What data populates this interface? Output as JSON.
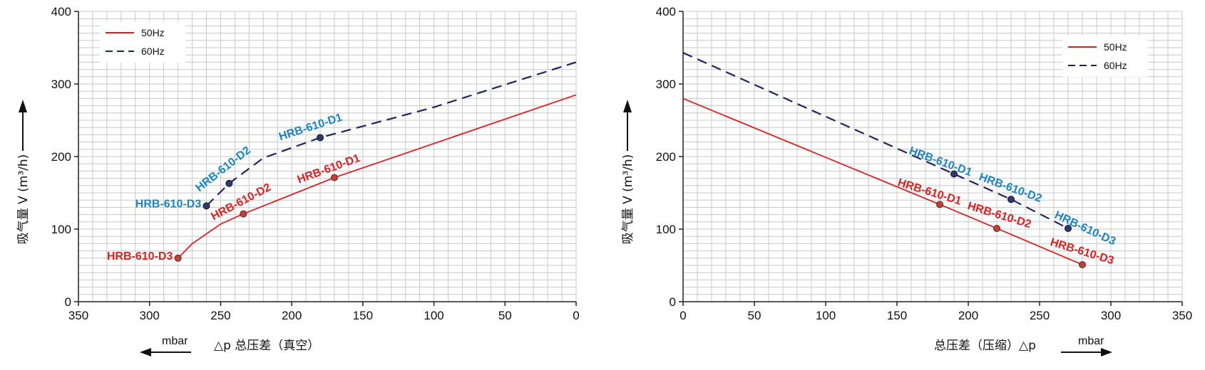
{
  "chart_data": [
    {
      "type": "line",
      "xlabel": "△p  总压差（真空）",
      "ylabel": "吸气量 V (m³/h)",
      "x_unit": "mbar",
      "xlim": [
        350,
        0
      ],
      "ylim": [
        0,
        400
      ],
      "x_ticks": [
        350,
        300,
        250,
        200,
        150,
        100,
        50,
        0
      ],
      "y_ticks": [
        0,
        100,
        200,
        300,
        400
      ],
      "grid": true,
      "x_reversed": true,
      "legend_position": "top-left",
      "series": [
        {
          "name": "50Hz",
          "color": "#e02020",
          "dash": false,
          "x": [
            280,
            270,
            250,
            234,
            170,
            0
          ],
          "y": [
            60,
            80,
            107,
            121,
            171,
            285
          ]
        },
        {
          "name": "60Hz",
          "color": "#1f2366",
          "dash": true,
          "x": [
            260,
            244,
            220,
            180,
            100,
            0
          ],
          "y": [
            132,
            163,
            198,
            226,
            268,
            330
          ]
        }
      ],
      "points": [
        {
          "label": "HRB-610-D3",
          "x": 280,
          "y": 60,
          "series": 0,
          "lx": 330,
          "ly": 58,
          "rot": 0,
          "color": "#e02020"
        },
        {
          "label": "HRB-610-D2",
          "x": 234,
          "y": 121,
          "series": 0,
          "lx": 255,
          "ly": 112,
          "rot": -28,
          "color": "#e02020"
        },
        {
          "label": "HRB-610-D1",
          "x": 170,
          "y": 171,
          "series": 0,
          "lx": 195,
          "ly": 163,
          "rot": -20,
          "color": "#e02020"
        },
        {
          "label": "HRB-610-D3",
          "x": 260,
          "y": 132,
          "series": 1,
          "lx": 310,
          "ly": 130,
          "rot": 0,
          "color": "#1b84c4"
        },
        {
          "label": "HRB-610-D2",
          "x": 244,
          "y": 163,
          "series": 1,
          "lx": 265,
          "ly": 151,
          "rot": -38,
          "color": "#1b84c4"
        },
        {
          "label": "HRB-610-D1",
          "x": 180,
          "y": 226,
          "series": 1,
          "lx": 208,
          "ly": 222,
          "rot": -18,
          "color": "#1b84c4"
        }
      ]
    },
    {
      "type": "line",
      "xlabel": "总压差（压缩）△p",
      "ylabel": "吸气量 V (m³/h)",
      "x_unit": "mbar",
      "xlim": [
        0,
        350
      ],
      "ylim": [
        0,
        400
      ],
      "x_ticks": [
        0,
        50,
        100,
        150,
        200,
        250,
        300,
        350
      ],
      "y_ticks": [
        0,
        100,
        200,
        300,
        400
      ],
      "grid": true,
      "x_reversed": false,
      "legend_position": "top-right",
      "series": [
        {
          "name": "50Hz",
          "color": "#e02020",
          "dash": false,
          "x": [
            0,
            180,
            220,
            280
          ],
          "y": [
            280,
            134,
            101,
            51
          ]
        },
        {
          "name": "60Hz",
          "color": "#1f2366",
          "dash": true,
          "x": [
            0,
            190,
            230,
            270
          ],
          "y": [
            343,
            176,
            141,
            101
          ]
        }
      ],
      "points": [
        {
          "label": "HRB-610-D1",
          "x": 180,
          "y": 134,
          "series": 0,
          "lx": 150,
          "ly": 160,
          "rot": 17,
          "color": "#e02020"
        },
        {
          "label": "HRB-610-D2",
          "x": 220,
          "y": 101,
          "series": 0,
          "lx": 199,
          "ly": 128,
          "rot": 17,
          "color": "#e02020"
        },
        {
          "label": "HRB-610-D3",
          "x": 280,
          "y": 51,
          "series": 0,
          "lx": 257,
          "ly": 78,
          "rot": 17,
          "color": "#e02020"
        },
        {
          "label": "HRB-610-D1",
          "x": 190,
          "y": 176,
          "series": 1,
          "lx": 158,
          "ly": 204,
          "rot": 20,
          "color": "#1b84c4"
        },
        {
          "label": "HRB-610-D2",
          "x": 230,
          "y": 141,
          "series": 1,
          "lx": 207,
          "ly": 168,
          "rot": 20,
          "color": "#1b84c4"
        },
        {
          "label": "HRB-610-D3",
          "x": 270,
          "y": 101,
          "series": 1,
          "lx": 260,
          "ly": 116,
          "rot": 25,
          "color": "#1b84c4"
        }
      ]
    }
  ]
}
